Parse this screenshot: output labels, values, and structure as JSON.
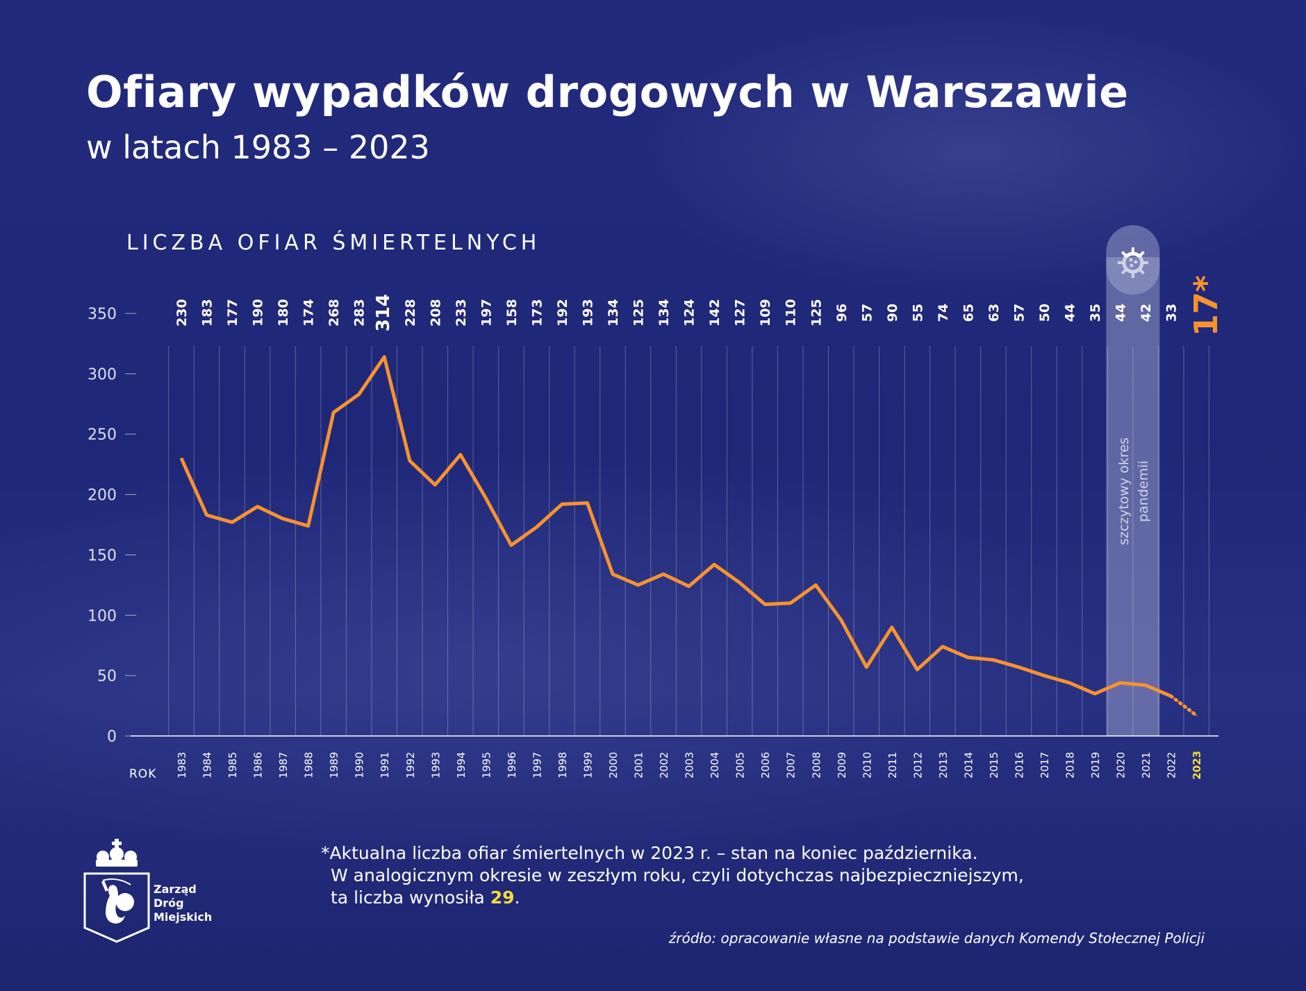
{
  "header": {
    "title": "Ofiary wypadków drogowych w Warszawie",
    "subtitle": "w latach 1983 – 2023"
  },
  "chart_data": {
    "type": "line",
    "title": "Ofiary wypadków drogowych w Warszawie",
    "subtitle": "w latach 1983 – 2023",
    "ylabel": "LICZBA OFIAR ŚMIERTELNYCH",
    "xlabel": "ROK",
    "ylim": [
      0,
      350
    ],
    "yticks": [
      0,
      50,
      100,
      150,
      200,
      250,
      300,
      350
    ],
    "grid": true,
    "x": [
      1983,
      1984,
      1985,
      1986,
      1987,
      1988,
      1989,
      1990,
      1991,
      1992,
      1993,
      1994,
      1995,
      1996,
      1997,
      1998,
      1999,
      2000,
      2001,
      2002,
      2003,
      2004,
      2005,
      2006,
      2007,
      2008,
      2009,
      2010,
      2011,
      2012,
      2013,
      2014,
      2015,
      2016,
      2017,
      2018,
      2019,
      2020,
      2021,
      2022,
      2023
    ],
    "values": [
      230,
      183,
      177,
      190,
      180,
      174,
      268,
      283,
      314,
      228,
      208,
      233,
      197,
      158,
      173,
      192,
      193,
      134,
      125,
      134,
      124,
      142,
      127,
      109,
      110,
      125,
      96,
      57,
      90,
      55,
      74,
      65,
      63,
      57,
      50,
      44,
      35,
      44,
      42,
      33,
      17
    ],
    "value_labels_note": "2023 value marked with asterisk: 17*",
    "highlight_band": {
      "from": 2020,
      "to": 2021,
      "label": "szczytowy okres pandemii",
      "icon": "virus-icon"
    },
    "colors": {
      "line": "#f7922f",
      "background": "#1f2778",
      "highlight": "#f3dc3c"
    }
  },
  "last_label_suffix": "*",
  "footnote": {
    "line1": "*Aktualna liczba ofiar śmiertelnych w 2023 r. – stan na koniec października.",
    "line2": "W analogicznym okresie w zeszłym roku, czyli dotychczas najbezpieczniejszym,",
    "line3_prefix": "ta liczba wynosiła ",
    "line3_value": "29",
    "line3_suffix": "."
  },
  "source": "źródło: opracowanie własne na podstawie danych Komendy Stołecznej Policji",
  "logo": {
    "line1": "Zarząd",
    "line2": "Dróg",
    "line3": "Miejskich"
  }
}
